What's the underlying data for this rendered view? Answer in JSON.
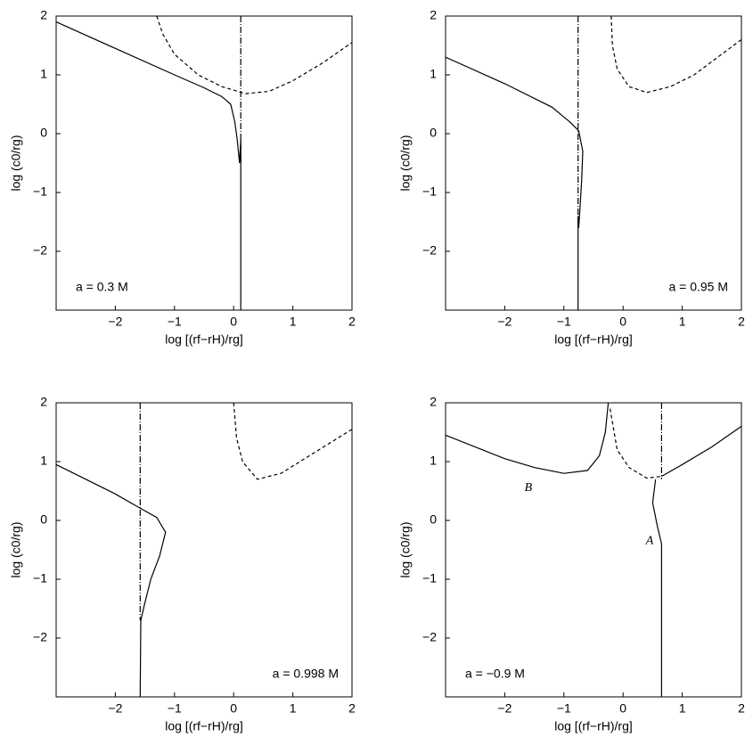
{
  "chart_data": [
    {
      "type": "line",
      "x_label": "log [(rf−rH)/rg]",
      "y_label": "log (c0/rg)",
      "xlim": [
        -3,
        2
      ],
      "ylim": [
        -3,
        2
      ],
      "xticks": [
        {
          "value": -2,
          "label": "−2"
        },
        {
          "value": -1,
          "label": "−1"
        },
        0,
        1,
        2
      ],
      "yticks": [
        {
          "value": -2,
          "label": "−2"
        },
        {
          "value": -1,
          "label": "−1"
        },
        0,
        1,
        2
      ],
      "annotation": "a = 0.3 M",
      "annotation_corner": "lower left",
      "series": [
        {
          "color": "#000000",
          "style": "solid",
          "x": [
            -3,
            -2,
            -1,
            -0.5,
            -0.2,
            -0.05,
            0.02,
            0.06,
            0.1,
            0.12,
            0.12
          ],
          "values": [
            1.9,
            1.45,
            1.0,
            0.78,
            0.63,
            0.5,
            0.2,
            -0.1,
            -0.5,
            -0.1,
            -3
          ]
        },
        {
          "color": "#000000",
          "style": "dashed",
          "x": [
            -1.3,
            -1.2,
            -1,
            -0.6,
            -0.2,
            0.2,
            0.6,
            1,
            1.5,
            2
          ],
          "values": [
            2,
            1.7,
            1.35,
            1.0,
            0.8,
            0.68,
            0.72,
            0.9,
            1.2,
            1.55
          ]
        },
        {
          "color": "#000000",
          "style": "dashdot",
          "x": [
            0.12,
            0.12
          ],
          "values": [
            2,
            -0.5
          ]
        }
      ]
    },
    {
      "type": "line",
      "x_label": "log [(rf−rH)/rg]",
      "y_label": "log (c0/rg)",
      "xlim": [
        -3,
        2
      ],
      "ylim": [
        -3,
        2
      ],
      "xticks": [
        {
          "value": -2,
          "label": "−2"
        },
        {
          "value": -1,
          "label": "−1"
        },
        0,
        1,
        2
      ],
      "yticks": [
        {
          "value": -2,
          "label": "−2"
        },
        {
          "value": -1,
          "label": "−1"
        },
        0,
        1,
        2
      ],
      "annotation": "a = 0.95 M",
      "annotation_corner": "lower right",
      "series": [
        {
          "color": "#000000",
          "style": "solid",
          "x": [
            -3,
            -2,
            -1.2,
            -0.9,
            -0.75,
            -0.68,
            -0.7,
            -0.73,
            -0.75,
            -0.76,
            -0.76
          ],
          "values": [
            1.3,
            0.85,
            0.45,
            0.2,
            0.05,
            -0.3,
            -0.8,
            -1.3,
            -1.6,
            -1.4,
            -3
          ]
        },
        {
          "color": "#000000",
          "style": "dashed",
          "x": [
            -0.2,
            -0.18,
            -0.1,
            0.1,
            0.4,
            0.8,
            1.2,
            1.6,
            2
          ],
          "values": [
            2,
            1.5,
            1.1,
            0.8,
            0.7,
            0.8,
            1.0,
            1.3,
            1.6
          ]
        },
        {
          "color": "#000000",
          "style": "dashdot",
          "x": [
            -0.76,
            -0.76
          ],
          "values": [
            2,
            -1.6
          ]
        }
      ]
    },
    {
      "type": "line",
      "x_label": "log [(rf−rH)/rg]",
      "y_label": "log (c0/rg)",
      "xlim": [
        -3,
        2
      ],
      "ylim": [
        -3,
        2
      ],
      "xticks": [
        {
          "value": -2,
          "label": "−2"
        },
        {
          "value": -1,
          "label": "−1"
        },
        0,
        1,
        2
      ],
      "yticks": [
        {
          "value": -2,
          "label": "−2"
        },
        {
          "value": -1,
          "label": "−1"
        },
        0,
        1,
        2
      ],
      "annotation": "a = 0.998 M",
      "annotation_corner": "lower right",
      "series": [
        {
          "color": "#000000",
          "style": "solid",
          "x": [
            -3,
            -2,
            -1.6,
            -1.3,
            -1.15,
            -1.25,
            -1.4,
            -1.5,
            -1.57,
            -1.58
          ],
          "values": [
            0.95,
            0.45,
            0.22,
            0.05,
            -0.2,
            -0.6,
            -1.0,
            -1.4,
            -1.7,
            -3
          ]
        },
        {
          "color": "#000000",
          "style": "dashed",
          "x": [
            0,
            0.05,
            0.15,
            0.4,
            0.8,
            1.2,
            1.6,
            2
          ],
          "values": [
            2,
            1.4,
            1.0,
            0.7,
            0.8,
            1.05,
            1.3,
            1.55
          ]
        },
        {
          "color": "#000000",
          "style": "dashdot",
          "x": [
            -1.58,
            -1.58
          ],
          "values": [
            2,
            -1.7
          ]
        }
      ]
    },
    {
      "type": "line",
      "x_label": "log [(rf−rH)/rg]",
      "y_label": "log (c0/rg)",
      "xlim": [
        -3,
        2
      ],
      "ylim": [
        -3,
        2
      ],
      "xticks": [
        {
          "value": -2,
          "label": "−2"
        },
        {
          "value": -1,
          "label": "−1"
        },
        0,
        1,
        2
      ],
      "yticks": [
        {
          "value": -2,
          "label": "−2"
        },
        {
          "value": -1,
          "label": "−1"
        },
        0,
        1,
        2
      ],
      "annotation": "a = −0.9 M",
      "annotation_corner": "lower left",
      "point_labels": [
        "B",
        "A"
      ],
      "series": [
        {
          "color": "#000000",
          "style": "solid",
          "x": [
            -3,
            -2,
            -1.5,
            -1,
            -0.6,
            -0.4,
            -0.3,
            -0.25,
            null,
            0.65,
            1,
            1.5,
            2,
            null,
            0.55,
            0.5,
            0.58,
            0.65,
            0.65
          ],
          "values": [
            1.45,
            1.05,
            0.9,
            0.8,
            0.85,
            1.1,
            1.5,
            2,
            null,
            0.75,
            0.95,
            1.25,
            1.6,
            null,
            0.7,
            0.3,
            -0.1,
            -0.4,
            -3
          ]
        },
        {
          "color": "#000000",
          "style": "dashed",
          "x": [
            -0.22,
            -0.1,
            0.1,
            0.4,
            0.65
          ],
          "values": [
            1.9,
            1.2,
            0.9,
            0.72,
            0.75
          ]
        },
        {
          "color": "#000000",
          "style": "dashdot",
          "x": [
            0.65,
            0.65
          ],
          "values": [
            2,
            0.7
          ]
        }
      ]
    }
  ]
}
